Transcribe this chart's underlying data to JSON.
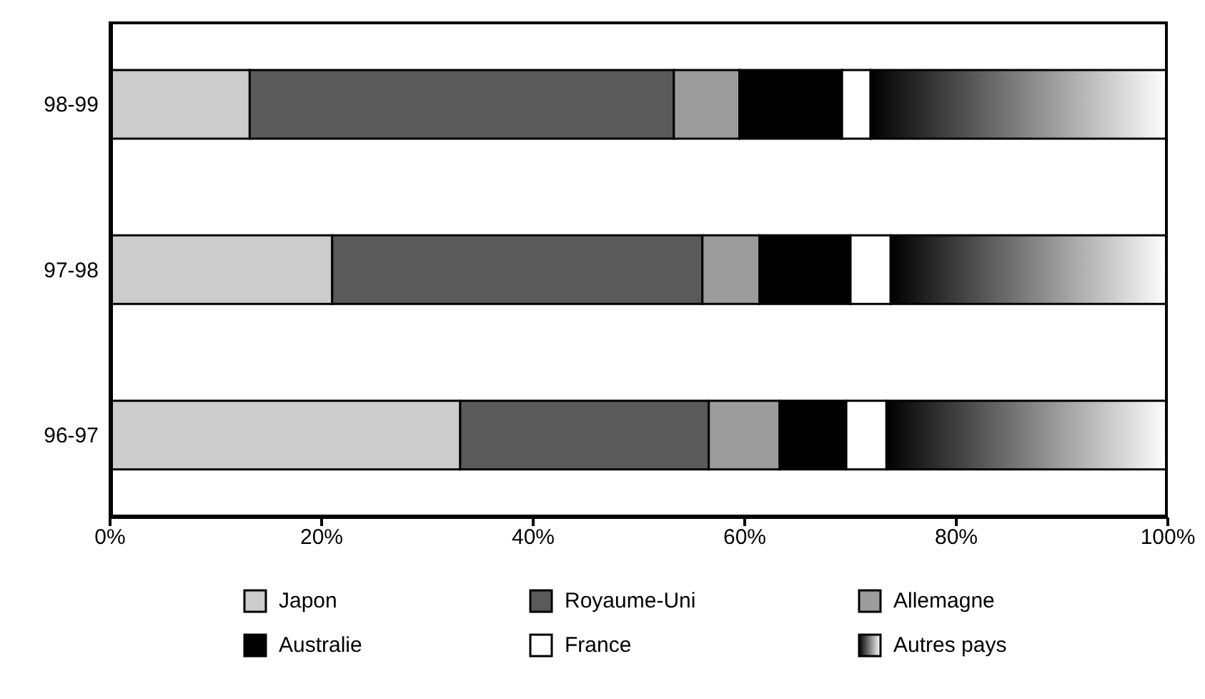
{
  "chart_data": {
    "type": "bar",
    "orientation": "horizontal",
    "stacked": true,
    "categories": [
      "98-99",
      "97-98",
      "96-97"
    ],
    "series": [
      {
        "name": "Japon",
        "color": "#cccccc",
        "values": [
          13.2,
          21.0,
          33.1
        ]
      },
      {
        "name": "Royaume-Uni",
        "color": "#5a5a5a",
        "values": [
          40.1,
          35.0,
          23.5
        ]
      },
      {
        "name": "Allemagne",
        "color": "#9c9c9c",
        "values": [
          6.2,
          5.4,
          6.7
        ]
      },
      {
        "name": "Australie",
        "color": "#000000",
        "values": [
          9.7,
          8.6,
          6.3
        ]
      },
      {
        "name": "France",
        "color": "#ffffff",
        "values": [
          2.7,
          3.8,
          3.8
        ]
      },
      {
        "name": "Autres pays",
        "color": "#000000",
        "values": [
          28.1,
          26.2,
          26.6
        ]
      }
    ],
    "xlim": [
      0,
      100
    ],
    "xticks": [
      {
        "value": 0,
        "label": "0%"
      },
      {
        "value": 20,
        "label": "20%"
      },
      {
        "value": 40,
        "label": "40%"
      },
      {
        "value": 60,
        "label": "60%"
      },
      {
        "value": 80,
        "label": "80%"
      },
      {
        "value": 100,
        "label": "100%"
      }
    ],
    "grid": false,
    "legend": "bottom"
  }
}
